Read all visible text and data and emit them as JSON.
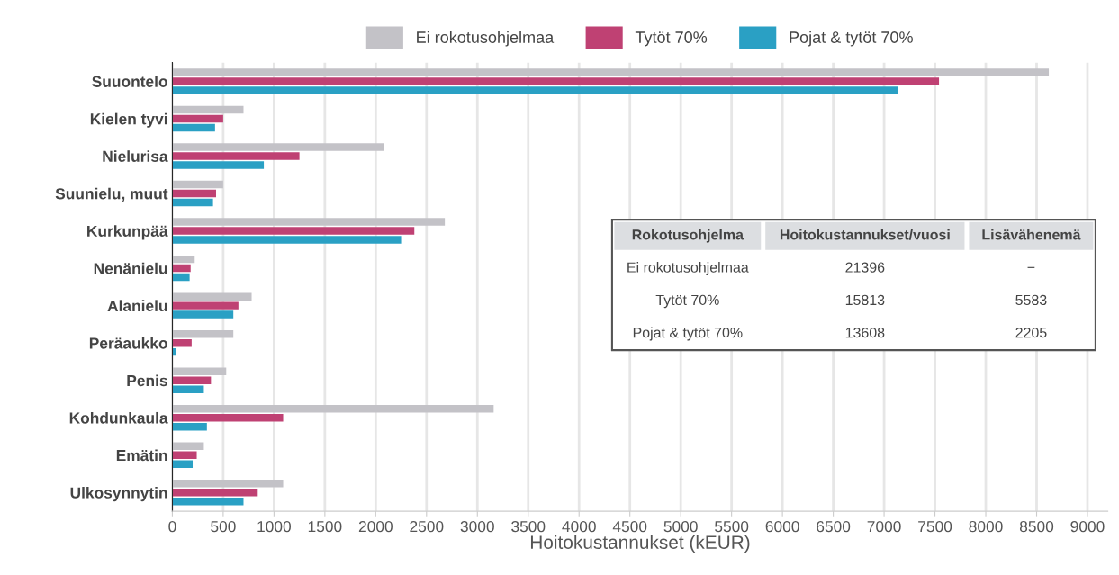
{
  "chart_data": {
    "type": "bar",
    "orientation": "horizontal",
    "xlabel": "Hoitokustannukset (kEUR)",
    "categories": [
      "Suuontelo",
      "Kielen tyvi",
      "Nielurisa",
      "Suunielu, muut",
      "Kurkunpää",
      "Nenänielu",
      "Alanielu",
      "Peräaukko",
      "Penis",
      "Kohdunkaula",
      "Emätin",
      "Ulkosynnytin"
    ],
    "series": [
      {
        "name": "Ei rokotusohjelmaa",
        "color": "#c3c2c7",
        "values": [
          8620,
          700,
          2080,
          500,
          2680,
          220,
          780,
          600,
          530,
          3160,
          310,
          1090
        ]
      },
      {
        "name": "Tytöt 70%",
        "color": "#bf4173",
        "values": [
          7540,
          500,
          1250,
          430,
          2380,
          180,
          650,
          190,
          380,
          1090,
          240,
          840
        ]
      },
      {
        "name": "Pojat & tytöt 70%",
        "color": "#2aa0c4",
        "values": [
          7140,
          420,
          900,
          400,
          2250,
          170,
          600,
          40,
          310,
          340,
          200,
          700
        ]
      }
    ],
    "xlim": [
      0,
      9200
    ],
    "xticks": [
      0,
      500,
      1000,
      1500,
      2000,
      2500,
      3000,
      3500,
      4000,
      4500,
      5000,
      5500,
      6000,
      6500,
      7000,
      7500,
      8000,
      8500,
      9000
    ],
    "grid": "x",
    "legend": "top",
    "annotations": [
      "Rokotusohjelma",
      "Hoitokustannukset/vuosi",
      "Lisävähenemä",
      "Ei rokotusohjelmaa",
      "21396",
      "−",
      "Tytöt 70%",
      "15813",
      "5583",
      "Pojat & tytöt 70%",
      "13608",
      "2205"
    ]
  }
}
